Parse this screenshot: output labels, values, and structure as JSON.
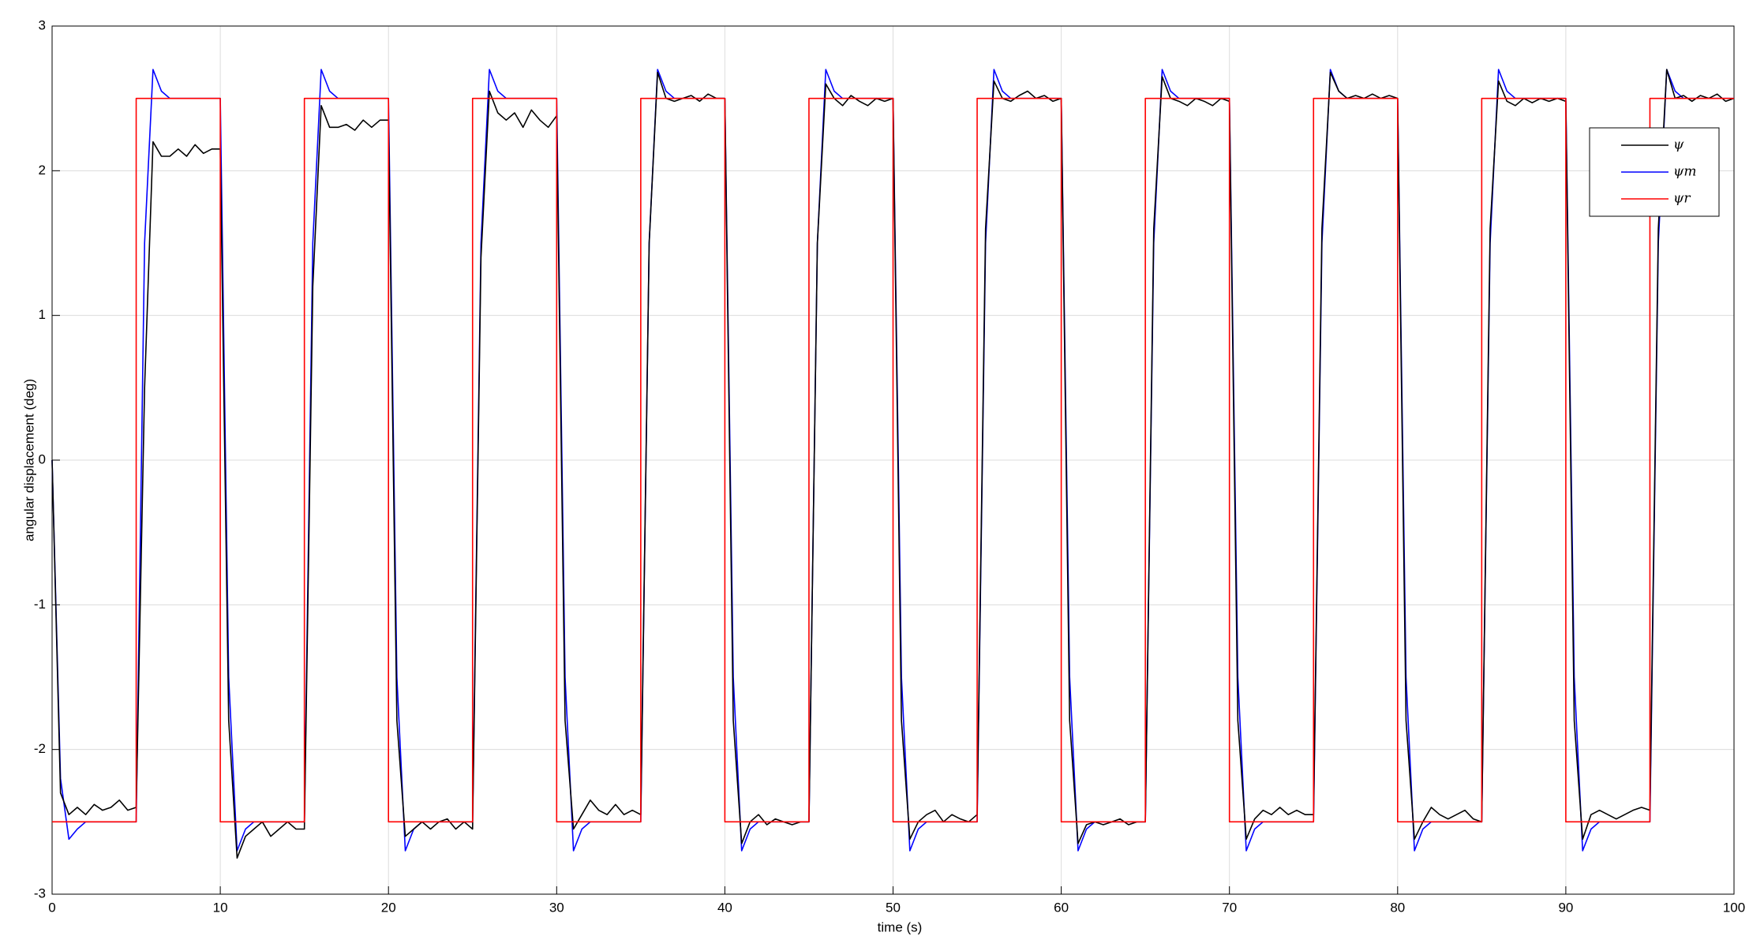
{
  "chart_data": {
    "type": "line",
    "xlabel": "time (s)",
    "ylabel": "angular displacement (deg)",
    "xlim": [
      0,
      100
    ],
    "xticks": [
      0,
      10,
      20,
      30,
      40,
      50,
      60,
      70,
      80,
      90,
      100
    ],
    "ylim": [
      -3,
      3
    ],
    "yticks": [
      -3,
      -2,
      -1,
      0,
      1,
      2,
      3
    ],
    "grid": true,
    "legend": "upper right",
    "x": [
      0,
      0.5,
      1,
      1.5,
      2,
      2.5,
      3,
      3.5,
      4,
      4.5,
      5,
      5.5,
      6,
      6.5,
      7,
      7.5,
      8,
      8.5,
      9,
      9.5,
      10,
      10.5,
      11,
      11.5,
      12,
      12.5,
      13,
      13.5,
      14,
      14.5,
      15,
      15.5,
      16,
      16.5,
      17,
      17.5,
      18,
      18.5,
      19,
      19.5,
      20,
      20.5,
      21,
      21.5,
      22,
      22.5,
      23,
      23.5,
      24,
      24.5,
      25,
      25.5,
      26,
      26.5,
      27,
      27.5,
      28,
      28.5,
      29,
      29.5,
      30,
      30.5,
      31,
      31.5,
      32,
      32.5,
      33,
      33.5,
      34,
      34.5,
      35,
      35.5,
      36,
      36.5,
      37,
      37.5,
      38,
      38.5,
      39,
      39.5,
      40,
      40.5,
      41,
      41.5,
      42,
      42.5,
      43,
      43.5,
      44,
      44.5,
      45,
      45.5,
      46,
      46.5,
      47,
      47.5,
      48,
      48.5,
      49,
      49.5,
      50,
      50.5,
      51,
      51.5,
      52,
      52.5,
      53,
      53.5,
      54,
      54.5,
      55,
      55.5,
      56,
      56.5,
      57,
      57.5,
      58,
      58.5,
      59,
      59.5,
      60,
      60.5,
      61,
      61.5,
      62,
      62.5,
      63,
      63.5,
      64,
      64.5,
      65,
      65.5,
      66,
      66.5,
      67,
      67.5,
      68,
      68.5,
      69,
      69.5,
      70,
      70.5,
      71,
      71.5,
      72,
      72.5,
      73,
      73.5,
      74,
      74.5,
      75,
      75.5,
      76,
      76.5,
      77,
      77.5,
      78,
      78.5,
      79,
      79.5,
      80,
      80.5,
      81,
      81.5,
      82,
      82.5,
      83,
      83.5,
      84,
      84.5,
      85,
      85.5,
      86,
      86.5,
      87,
      87.5,
      88,
      88.5,
      89,
      89.5,
      90,
      90.5,
      91,
      91.5,
      92,
      92.5,
      93,
      93.5,
      94,
      94.5,
      95,
      95.5,
      96,
      96.5,
      97,
      97.5,
      98,
      98.5,
      99,
      99.5,
      100
    ],
    "series": [
      {
        "name": "ψ",
        "color": "#000000",
        "values": [
          0,
          -2.3,
          -2.45,
          -2.4,
          -2.45,
          -2.38,
          -2.42,
          -2.4,
          -2.35,
          -2.42,
          -2.4,
          0.5,
          2.2,
          2.1,
          2.1,
          2.15,
          2.1,
          2.18,
          2.12,
          2.15,
          2.15,
          -1.8,
          -2.75,
          -2.6,
          -2.55,
          -2.5,
          -2.6,
          -2.55,
          -2.5,
          -2.55,
          -2.55,
          1.2,
          2.45,
          2.3,
          2.3,
          2.32,
          2.28,
          2.35,
          2.3,
          2.35,
          2.35,
          -1.8,
          -2.6,
          -2.55,
          -2.5,
          -2.55,
          -2.5,
          -2.48,
          -2.55,
          -2.5,
          -2.55,
          1.4,
          2.55,
          2.4,
          2.35,
          2.4,
          2.3,
          2.42,
          2.35,
          2.3,
          2.38,
          -1.8,
          -2.55,
          -2.45,
          -2.35,
          -2.42,
          -2.45,
          -2.38,
          -2.45,
          -2.42,
          -2.45,
          1.5,
          2.68,
          2.5,
          2.48,
          2.5,
          2.52,
          2.48,
          2.53,
          2.5,
          2.5,
          -1.8,
          -2.65,
          -2.5,
          -2.45,
          -2.52,
          -2.48,
          -2.5,
          -2.52,
          -2.5,
          -2.5,
          1.5,
          2.6,
          2.5,
          2.45,
          2.52,
          2.48,
          2.45,
          2.5,
          2.48,
          2.5,
          -1.8,
          -2.62,
          -2.5,
          -2.45,
          -2.42,
          -2.5,
          -2.45,
          -2.48,
          -2.5,
          -2.45,
          1.6,
          2.62,
          2.5,
          2.48,
          2.52,
          2.55,
          2.5,
          2.52,
          2.48,
          2.5,
          -1.8,
          -2.65,
          -2.52,
          -2.5,
          -2.52,
          -2.5,
          -2.48,
          -2.52,
          -2.5,
          -2.5,
          1.6,
          2.65,
          2.5,
          2.48,
          2.45,
          2.5,
          2.48,
          2.45,
          2.5,
          2.48,
          -1.8,
          -2.62,
          -2.48,
          -2.42,
          -2.45,
          -2.4,
          -2.45,
          -2.42,
          -2.45,
          -2.45,
          1.6,
          2.68,
          2.55,
          2.5,
          2.52,
          2.5,
          2.53,
          2.5,
          2.52,
          2.5,
          -1.8,
          -2.62,
          -2.5,
          -2.4,
          -2.45,
          -2.48,
          -2.45,
          -2.42,
          -2.48,
          -2.5,
          1.6,
          2.62,
          2.48,
          2.45,
          2.5,
          2.47,
          2.5,
          2.48,
          2.5,
          2.48,
          -1.8,
          -2.62,
          -2.45,
          -2.42,
          -2.45,
          -2.48,
          -2.45,
          -2.42,
          -2.4,
          -2.42,
          1.6,
          2.7,
          2.5,
          2.52,
          2.48,
          2.52,
          2.5,
          2.53,
          2.48,
          2.5
        ]
      },
      {
        "name": "ψm",
        "color": "#0000ff",
        "values": [
          0,
          -2.2,
          -2.62,
          -2.55,
          -2.5,
          -2.5,
          -2.5,
          -2.5,
          -2.5,
          -2.5,
          -2.5,
          1.5,
          2.7,
          2.55,
          2.5,
          2.5,
          2.5,
          2.5,
          2.5,
          2.5,
          2.5,
          -1.5,
          -2.7,
          -2.55,
          -2.5,
          -2.5,
          -2.5,
          -2.5,
          -2.5,
          -2.5,
          -2.5,
          1.5,
          2.7,
          2.55,
          2.5,
          2.5,
          2.5,
          2.5,
          2.5,
          2.5,
          2.5,
          -1.5,
          -2.7,
          -2.55,
          -2.5,
          -2.5,
          -2.5,
          -2.5,
          -2.5,
          -2.5,
          -2.5,
          1.5,
          2.7,
          2.55,
          2.5,
          2.5,
          2.5,
          2.5,
          2.5,
          2.5,
          2.5,
          -1.5,
          -2.7,
          -2.55,
          -2.5,
          -2.5,
          -2.5,
          -2.5,
          -2.5,
          -2.5,
          -2.5,
          1.5,
          2.7,
          2.55,
          2.5,
          2.5,
          2.5,
          2.5,
          2.5,
          2.5,
          2.5,
          -1.5,
          -2.7,
          -2.55,
          -2.5,
          -2.5,
          -2.5,
          -2.5,
          -2.5,
          -2.5,
          -2.5,
          1.5,
          2.7,
          2.55,
          2.5,
          2.5,
          2.5,
          2.5,
          2.5,
          2.5,
          2.5,
          -1.5,
          -2.7,
          -2.55,
          -2.5,
          -2.5,
          -2.5,
          -2.5,
          -2.5,
          -2.5,
          -2.5,
          1.5,
          2.7,
          2.55,
          2.5,
          2.5,
          2.5,
          2.5,
          2.5,
          2.5,
          2.5,
          -1.5,
          -2.7,
          -2.55,
          -2.5,
          -2.5,
          -2.5,
          -2.5,
          -2.5,
          -2.5,
          -2.5,
          1.5,
          2.7,
          2.55,
          2.5,
          2.5,
          2.5,
          2.5,
          2.5,
          2.5,
          2.5,
          -1.5,
          -2.7,
          -2.55,
          -2.5,
          -2.5,
          -2.5,
          -2.5,
          -2.5,
          -2.5,
          -2.5,
          1.5,
          2.7,
          2.55,
          2.5,
          2.5,
          2.5,
          2.5,
          2.5,
          2.5,
          2.5,
          -1.5,
          -2.7,
          -2.55,
          -2.5,
          -2.5,
          -2.5,
          -2.5,
          -2.5,
          -2.5,
          -2.5,
          1.5,
          2.7,
          2.55,
          2.5,
          2.5,
          2.5,
          2.5,
          2.5,
          2.5,
          2.5,
          -1.5,
          -2.7,
          -2.55,
          -2.5,
          -2.5,
          -2.5,
          -2.5,
          -2.5,
          -2.5,
          -2.5,
          1.5,
          2.7,
          2.55,
          2.5,
          2.5,
          2.5,
          2.5,
          2.5,
          2.5,
          2.5
        ]
      },
      {
        "name": "ψr",
        "color": "#ff0000",
        "x": [
          0,
          5,
          5,
          10,
          10,
          15,
          15,
          20,
          20,
          25,
          25,
          30,
          30,
          35,
          35,
          40,
          40,
          45,
          45,
          50,
          50,
          55,
          55,
          60,
          60,
          65,
          65,
          70,
          70,
          75,
          75,
          80,
          80,
          85,
          85,
          90,
          90,
          95,
          95,
          100
        ],
        "values": [
          -2.5,
          -2.5,
          2.5,
          2.5,
          -2.5,
          -2.5,
          2.5,
          2.5,
          -2.5,
          -2.5,
          2.5,
          2.5,
          -2.5,
          -2.5,
          2.5,
          2.5,
          -2.5,
          -2.5,
          2.5,
          2.5,
          -2.5,
          -2.5,
          2.5,
          2.5,
          -2.5,
          -2.5,
          2.5,
          2.5,
          -2.5,
          -2.5,
          2.5,
          2.5,
          -2.5,
          -2.5,
          2.5,
          2.5,
          -2.5,
          -2.5,
          2.5,
          2.5
        ]
      }
    ]
  }
}
